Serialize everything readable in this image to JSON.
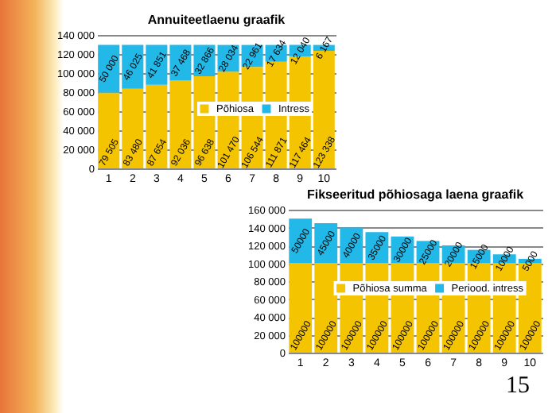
{
  "chart_data": [
    {
      "type": "bar",
      "title": "Annuiteetlaenu graafik",
      "categories": [
        "1",
        "2",
        "3",
        "4",
        "5",
        "6",
        "7",
        "8",
        "9",
        "10"
      ],
      "stacked": true,
      "series": [
        {
          "name": "Põhiosa",
          "color": "#f5c400",
          "values": [
            79505,
            83480,
            87654,
            92036,
            96638,
            101470,
            106544,
            111871,
            117464,
            123338
          ],
          "value_labels": [
            "79 505",
            "83 480",
            "87 654",
            "92 036",
            "96 638",
            "101 470",
            "106 544",
            "111 871",
            "117 464",
            "123 338"
          ]
        },
        {
          "name": "Intress",
          "color": "#22b8e8",
          "values": [
            50000,
            46025,
            41851,
            37468,
            32866,
            28034,
            22961,
            17634,
            12040,
            6167
          ],
          "value_labels": [
            "50 000",
            "46 025",
            "41 851",
            "37 468",
            "32 866",
            "28 034",
            "22 961",
            "17 634",
            "12 040",
            "6 167"
          ]
        }
      ],
      "ylim": [
        0,
        140000
      ],
      "yticks": [
        {
          "value": 0,
          "label": "0"
        },
        {
          "value": 20000,
          "label": "20 000"
        },
        {
          "value": 40000,
          "label": "40 000"
        },
        {
          "value": 60000,
          "label": "60 000"
        },
        {
          "value": 80000,
          "label": "80 000"
        },
        {
          "value": 100000,
          "label": "100 000"
        },
        {
          "value": 120000,
          "label": "120 000"
        },
        {
          "value": 140000,
          "label": "140 000"
        }
      ],
      "grid": "y",
      "legend": "center"
    },
    {
      "type": "bar",
      "title": "Fikseeritud põhiosaga laena graafik",
      "categories": [
        "1",
        "2",
        "3",
        "4",
        "5",
        "6",
        "7",
        "8",
        "9",
        "10"
      ],
      "stacked": true,
      "data_labels": true,
      "series": [
        {
          "name": "Põhiosa summa",
          "color": "#f5c400",
          "values": [
            100000,
            100000,
            100000,
            100000,
            100000,
            100000,
            100000,
            100000,
            100000,
            100000
          ]
        },
        {
          "name": "Periood. intress",
          "color": "#22b8e8",
          "values": [
            50000,
            45000,
            40000,
            35000,
            30000,
            25000,
            20000,
            15000,
            10000,
            5000
          ]
        }
      ],
      "ylim": [
        0,
        160000
      ],
      "yticks": [
        {
          "value": 0,
          "label": "0"
        },
        {
          "value": 20000,
          "label": "20 000"
        },
        {
          "value": 40000,
          "label": "40 000"
        },
        {
          "value": 60000,
          "label": "60 000"
        },
        {
          "value": 80000,
          "label": "80 000"
        },
        {
          "value": 100000,
          "label": "100 000"
        },
        {
          "value": 120000,
          "label": "120 000"
        },
        {
          "value": 140000,
          "label": "140 000"
        },
        {
          "value": 160000,
          "label": "160 000"
        }
      ],
      "grid": "y",
      "legend": "center",
      "annotations": [
        "15"
      ]
    }
  ]
}
